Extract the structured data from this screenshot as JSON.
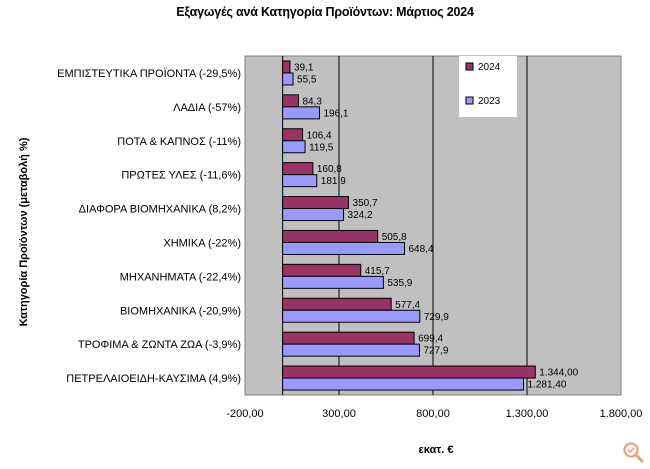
{
  "chart_data": {
    "type": "bar",
    "orientation": "horizontal",
    "title": "Εξαγωγές ανά Κατηγορία Προϊόντων: Μάρτιος 2024",
    "xlabel": "εκατ. €",
    "ylabel": "Κατηγορία Προϊόντων (μεταβολή %)",
    "xlim": [
      -200,
      1800
    ],
    "x_ticks": [
      "-200,00",
      "300,00",
      "800,00",
      "1.300,00",
      "1.800,00"
    ],
    "x_tick_values": [
      -200,
      300,
      800,
      1300,
      1800
    ],
    "grid": true,
    "legend_position": "top-right",
    "categories": [
      "ΕΜΠΙΣΤΕΥΤΙΚΑ ΠΡΟΪΟΝΤΑ (-29,5%)",
      "ΛΑΔΙΑ (-57%)",
      "ΠΟΤΑ & ΚΑΠΝΟΣ (-11%)",
      "ΠΡΩΤΕΣ ΥΛΕΣ (-11,6%)",
      "ΔΙΑΦΟΡΑ ΒΙΟΜΗΧΑΝΙΚΑ (8,2%)",
      "ΧΗΜΙΚΑ (-22%)",
      "ΜΗΧΑΝΗΜΑΤΑ (-22,4%)",
      "ΒΙΟΜΗΧΑΝΙΚΑ (-20,9%)",
      "ΤΡΟΦΙΜΑ & ΖΩΝΤΑ ΖΩΑ (-3,9%)",
      "ΠΕΤΡΕΛΑΙΟΕΙΔΗ-ΚΑΥΣΙΜΑ (4,9%)"
    ],
    "series": [
      {
        "name": "2024",
        "color": "#993366",
        "values": [
          39.1,
          84.3,
          106.4,
          160.8,
          350.7,
          505.8,
          415.7,
          577.4,
          699.4,
          1344.0
        ],
        "labels": [
          "39,1",
          "84,3",
          "106,4",
          "160,8",
          "350,7",
          "505,8",
          "415,7",
          "577,4",
          "699,4",
          "1.344,00"
        ]
      },
      {
        "name": "2023",
        "color": "#9999ff",
        "values": [
          55.5,
          196.1,
          119.5,
          181.9,
          324.2,
          648.4,
          535.9,
          729.9,
          727.9,
          1281.4
        ],
        "labels": [
          "55,5",
          "196,1",
          "119,5",
          "181,9",
          "324,2",
          "648,4",
          "535,9",
          "729,9",
          "727,9",
          "1.281,40"
        ]
      }
    ],
    "plot_background": "#c0c0c0"
  }
}
